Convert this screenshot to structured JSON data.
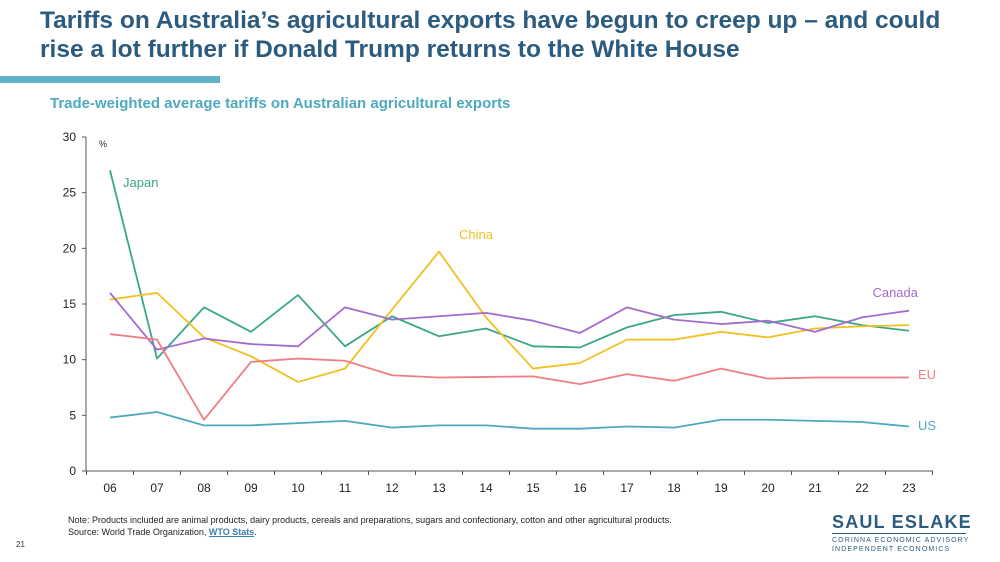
{
  "slide": {
    "title": "Tariffs on Australia’s agricultural exports have begun to creep up – and could rise a lot further if Donald Trump returns to the White House",
    "page_number": "21"
  },
  "notes": {
    "line1": "Note: Products included are animal products, dairy products, cereals and preparations, sugars and confectionary, cotton and other agricultural products.",
    "source_prefix": "Source: World Trade Organization, ",
    "source_link": "WTO Stats",
    "source_suffix": "."
  },
  "brand": {
    "name": "SAUL ESLAKE",
    "line1": "CORINNA ECONOMIC ADVISORY",
    "line2": "INDEPENDENT ECONOMICS"
  },
  "chart_data": {
    "type": "line",
    "title": "Trade-weighted average tariffs on Australian agricultural exports",
    "unit_label": "%",
    "categories": [
      "06",
      "07",
      "08",
      "09",
      "10",
      "11",
      "12",
      "13",
      "14",
      "15",
      "16",
      "17",
      "18",
      "19",
      "20",
      "21",
      "22",
      "23"
    ],
    "ylim": [
      0,
      30
    ],
    "yticks": [
      0,
      5,
      10,
      15,
      20,
      25,
      30
    ],
    "grid": false,
    "legend": "inline labels",
    "series": [
      {
        "name": "Japan",
        "color": "#3aa68a",
        "values": [
          27.0,
          10.1,
          14.7,
          12.5,
          15.8,
          11.2,
          13.9,
          12.1,
          12.8,
          11.2,
          11.1,
          12.9,
          14.0,
          14.3,
          13.3,
          13.9,
          13.1,
          12.6
        ]
      },
      {
        "name": "China",
        "color": "#f2c01e",
        "values": [
          15.4,
          16.0,
          12.0,
          10.3,
          8.0,
          9.2,
          14.5,
          19.7,
          13.8,
          9.2,
          9.7,
          11.8,
          11.8,
          12.5,
          12.0,
          12.8,
          13.0,
          13.1
        ]
      },
      {
        "name": "Canada",
        "color": "#a46ccf",
        "values": [
          16.0,
          10.9,
          11.9,
          11.4,
          11.2,
          14.7,
          13.6,
          13.9,
          14.2,
          13.5,
          12.4,
          14.7,
          13.6,
          13.2,
          13.5,
          12.5,
          13.8,
          14.4
        ]
      },
      {
        "name": "EU",
        "color": "#f07e85",
        "values": [
          12.3,
          11.8,
          4.6,
          9.8,
          10.1,
          9.9,
          8.6,
          8.4,
          8.45,
          8.5,
          7.8,
          8.7,
          8.1,
          9.2,
          8.3,
          8.4,
          8.4,
          8.4
        ]
      },
      {
        "name": "US",
        "color": "#4ea9bf",
        "values": [
          4.8,
          5.3,
          4.1,
          4.1,
          4.3,
          4.5,
          3.9,
          4.1,
          4.1,
          3.8,
          3.8,
          4.0,
          3.9,
          4.6,
          4.6,
          4.5,
          4.4,
          4.0
        ]
      }
    ]
  }
}
